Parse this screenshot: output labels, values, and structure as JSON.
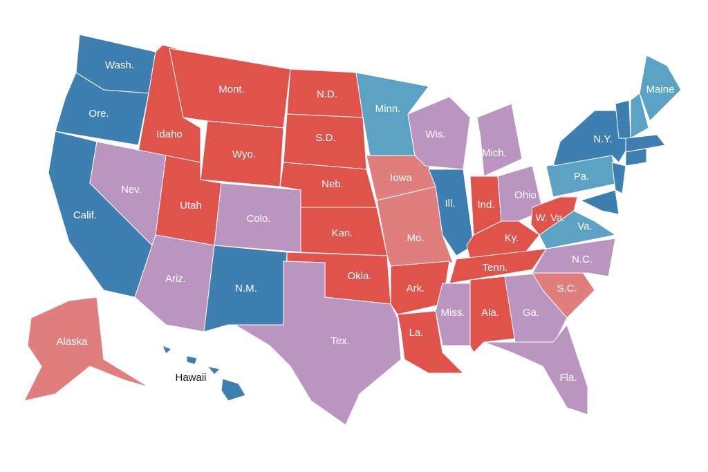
{
  "states": [
    {
      "label": "Wash.",
      "color": "#3d7fb1"
    },
    {
      "label": "Ore.",
      "color": "#3d7fb1"
    },
    {
      "label": "Calif.",
      "color": "#3d7fb1"
    },
    {
      "label": "Idaho",
      "color": "#e0534b"
    },
    {
      "label": "Mont.",
      "color": "#e0534b"
    },
    {
      "label": "Wyo.",
      "color": "#e0534b"
    },
    {
      "label": "Nev.",
      "color": "#b995c0"
    },
    {
      "label": "Utah",
      "color": "#e0534b"
    },
    {
      "label": "Colo.",
      "color": "#b995c0"
    },
    {
      "label": "Ariz.",
      "color": "#b995c0"
    },
    {
      "label": "N.M.",
      "color": "#3d7fb1"
    },
    {
      "label": "N.D.",
      "color": "#e0534b"
    },
    {
      "label": "S.D.",
      "color": "#e0534b"
    },
    {
      "label": "Neb.",
      "color": "#e0534b"
    },
    {
      "label": "Kan.",
      "color": "#e0534b"
    },
    {
      "label": "Okla.",
      "color": "#e0534b"
    },
    {
      "label": "Tex.",
      "color": "#b995c0"
    },
    {
      "label": "Minn.",
      "color": "#5ba2c5"
    },
    {
      "label": "Iowa",
      "color": "#e07d7d"
    },
    {
      "label": "Mo.",
      "color": "#e07d7d"
    },
    {
      "label": "Ark.",
      "color": "#e0534b"
    },
    {
      "label": "La.",
      "color": "#e0534b"
    },
    {
      "label": "Wis.",
      "color": "#b995c0"
    },
    {
      "label": "Ill.",
      "color": "#3d7fb1"
    },
    {
      "label": "Mich.",
      "color": "#b995c0"
    },
    {
      "label": "Ind.",
      "color": "#e0534b"
    },
    {
      "label": "Ohio",
      "color": "#b995c0"
    },
    {
      "label": "Ky.",
      "color": "#e0534b"
    },
    {
      "label": "Tenn.",
      "color": "#e0534b"
    },
    {
      "label": "Miss.",
      "color": "#b995c0"
    },
    {
      "label": "Ala.",
      "color": "#e0534b"
    },
    {
      "label": "Ga.",
      "color": "#b995c0"
    },
    {
      "label": "Fla.",
      "color": "#b995c0"
    },
    {
      "label": "S.C.",
      "color": "#e07d7d"
    },
    {
      "label": "N.C.",
      "color": "#b995c0"
    },
    {
      "label": "Va.",
      "color": "#5ba2c5"
    },
    {
      "label": "W. Va.",
      "color": "#e0534b"
    },
    {
      "label": "Pa.",
      "color": "#5ba2c5"
    },
    {
      "label": "N.Y.",
      "color": "#3d7fb1"
    },
    {
      "label": "Maine",
      "color": "#5ba2c5"
    },
    {
      "label": "Alaska",
      "color": "#e07d7d"
    },
    {
      "label": "Hawaii",
      "color": "#3d7fb1"
    }
  ],
  "unlabeled_states": [
    {
      "color": "#3d7fb1"
    },
    {
      "color": "#5ba2c5"
    },
    {
      "color": "#3d7fb1"
    },
    {
      "color": "#3d7fb1"
    },
    {
      "color": "#3d7fb1"
    },
    {
      "color": "#3d7fb1"
    }
  ]
}
